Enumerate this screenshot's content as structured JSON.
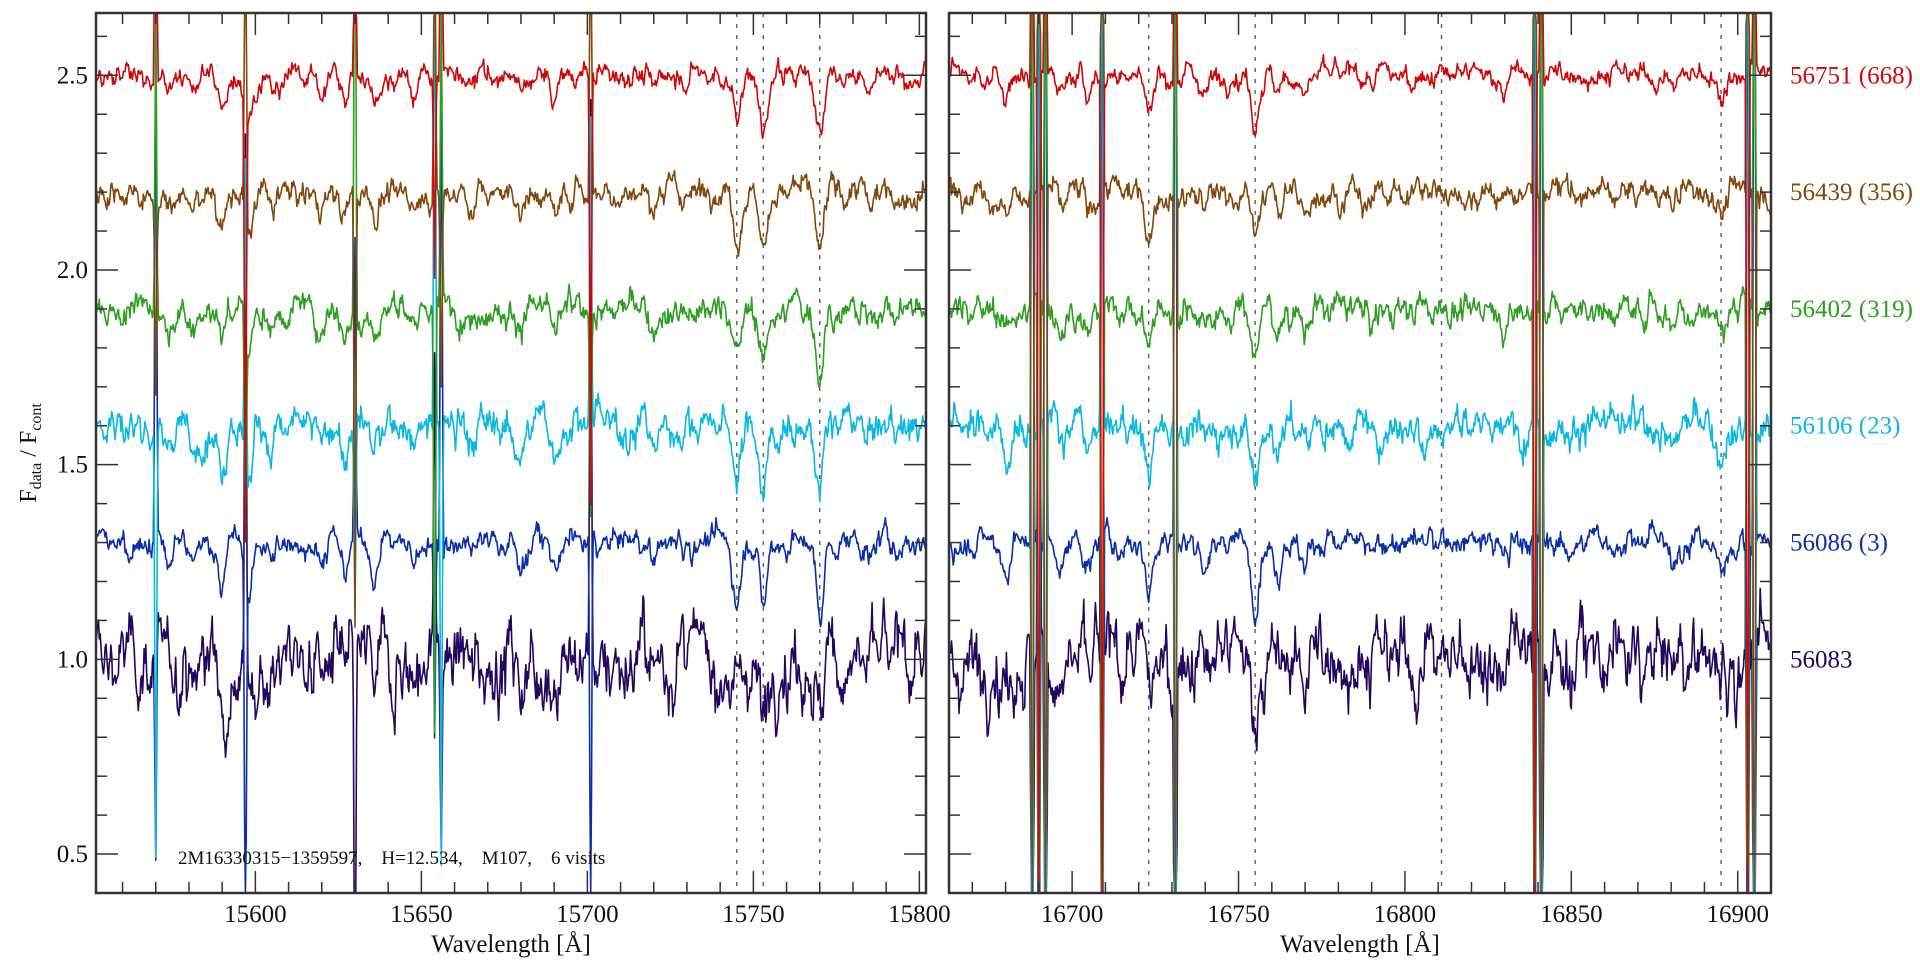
{
  "chart_data": {
    "type": "line",
    "title": "",
    "ylabel_main": "F",
    "ylabel_sub1": "data",
    "ylabel_sep": " / F",
    "ylabel_sub2": "cont",
    "ylim": [
      0.4,
      2.66
    ],
    "yticks": [
      0.5,
      1.0,
      1.5,
      2.0,
      2.5
    ],
    "ytick_labels": [
      "0.5",
      "1.0",
      "1.5",
      "2.0",
      "2.5"
    ],
    "annotation": "2M16330315−1359597,    H=12.534,    M107,    6 visits",
    "panels": [
      {
        "xlabel": "Wavelength [Å]",
        "xlim": [
          15552,
          15802
        ],
        "xticks": [
          15600,
          15650,
          15700,
          15750,
          15800
        ],
        "xtick_labels": [
          "15600",
          "15650",
          "15700",
          "15750",
          "15800"
        ],
        "dashed_lines": [
          15745,
          15753,
          15770
        ],
        "absorption_lines": [
          [
            15574,
            0.05
          ],
          [
            15581,
            0.06
          ],
          [
            15590,
            0.08
          ],
          [
            15598,
            0.12
          ],
          [
            15605,
            0.05
          ],
          [
            15620,
            0.04
          ],
          [
            15627,
            0.07
          ],
          [
            15636,
            0.06
          ],
          [
            15648,
            0.05
          ],
          [
            15665,
            0.04
          ],
          [
            15680,
            0.05
          ],
          [
            15690,
            0.06
          ],
          [
            15720,
            0.04
          ],
          [
            15745,
            0.12
          ],
          [
            15753,
            0.15
          ],
          [
            15770,
            0.17
          ],
          [
            15785,
            0.04
          ]
        ],
        "spikes": [
          15570,
          15597,
          15630,
          15654,
          15656,
          15701
        ]
      },
      {
        "xlabel": "Wavelength [Å]",
        "xlim": [
          16663,
          16910
        ],
        "xticks": [
          16700,
          16750,
          16800,
          16850,
          16900
        ],
        "xtick_labels": [
          "16700",
          "16750",
          "16800",
          "16850",
          "16900"
        ],
        "dashed_lines": [
          16723,
          16755,
          16811,
          16895
        ],
        "absorption_lines": [
          [
            16680,
            0.06
          ],
          [
            16697,
            0.05
          ],
          [
            16705,
            0.06
          ],
          [
            16723,
            0.1
          ],
          [
            16740,
            0.04
          ],
          [
            16755,
            0.12
          ],
          [
            16762,
            0.06
          ],
          [
            16770,
            0.05
          ],
          [
            16790,
            0.03
          ],
          [
            16830,
            0.03
          ],
          [
            16880,
            0.04
          ],
          [
            16895,
            0.06
          ]
        ],
        "spikes": [
          16688,
          16690,
          16692,
          16709,
          16731,
          16839,
          16841,
          16903,
          16905
        ]
      }
    ],
    "series": [
      {
        "name": "56751 (668)",
        "offset": 2.5,
        "noise": 0.012,
        "color": "#cc0a0a"
      },
      {
        "name": "56439 (356)",
        "offset": 2.2,
        "noise": 0.014,
        "color": "#7f4a0c"
      },
      {
        "name": "56402 (319)",
        "offset": 1.9,
        "noise": 0.016,
        "color": "#2f9e22"
      },
      {
        "name": "56106 (23)",
        "offset": 1.6,
        "noise": 0.02,
        "color": "#0cb8e0"
      },
      {
        "name": "56086 (3)",
        "offset": 1.3,
        "noise": 0.014,
        "color": "#0c2fa6"
      },
      {
        "name": "56083",
        "offset": 1.0,
        "noise": 0.04,
        "color": "#22095e"
      }
    ]
  }
}
